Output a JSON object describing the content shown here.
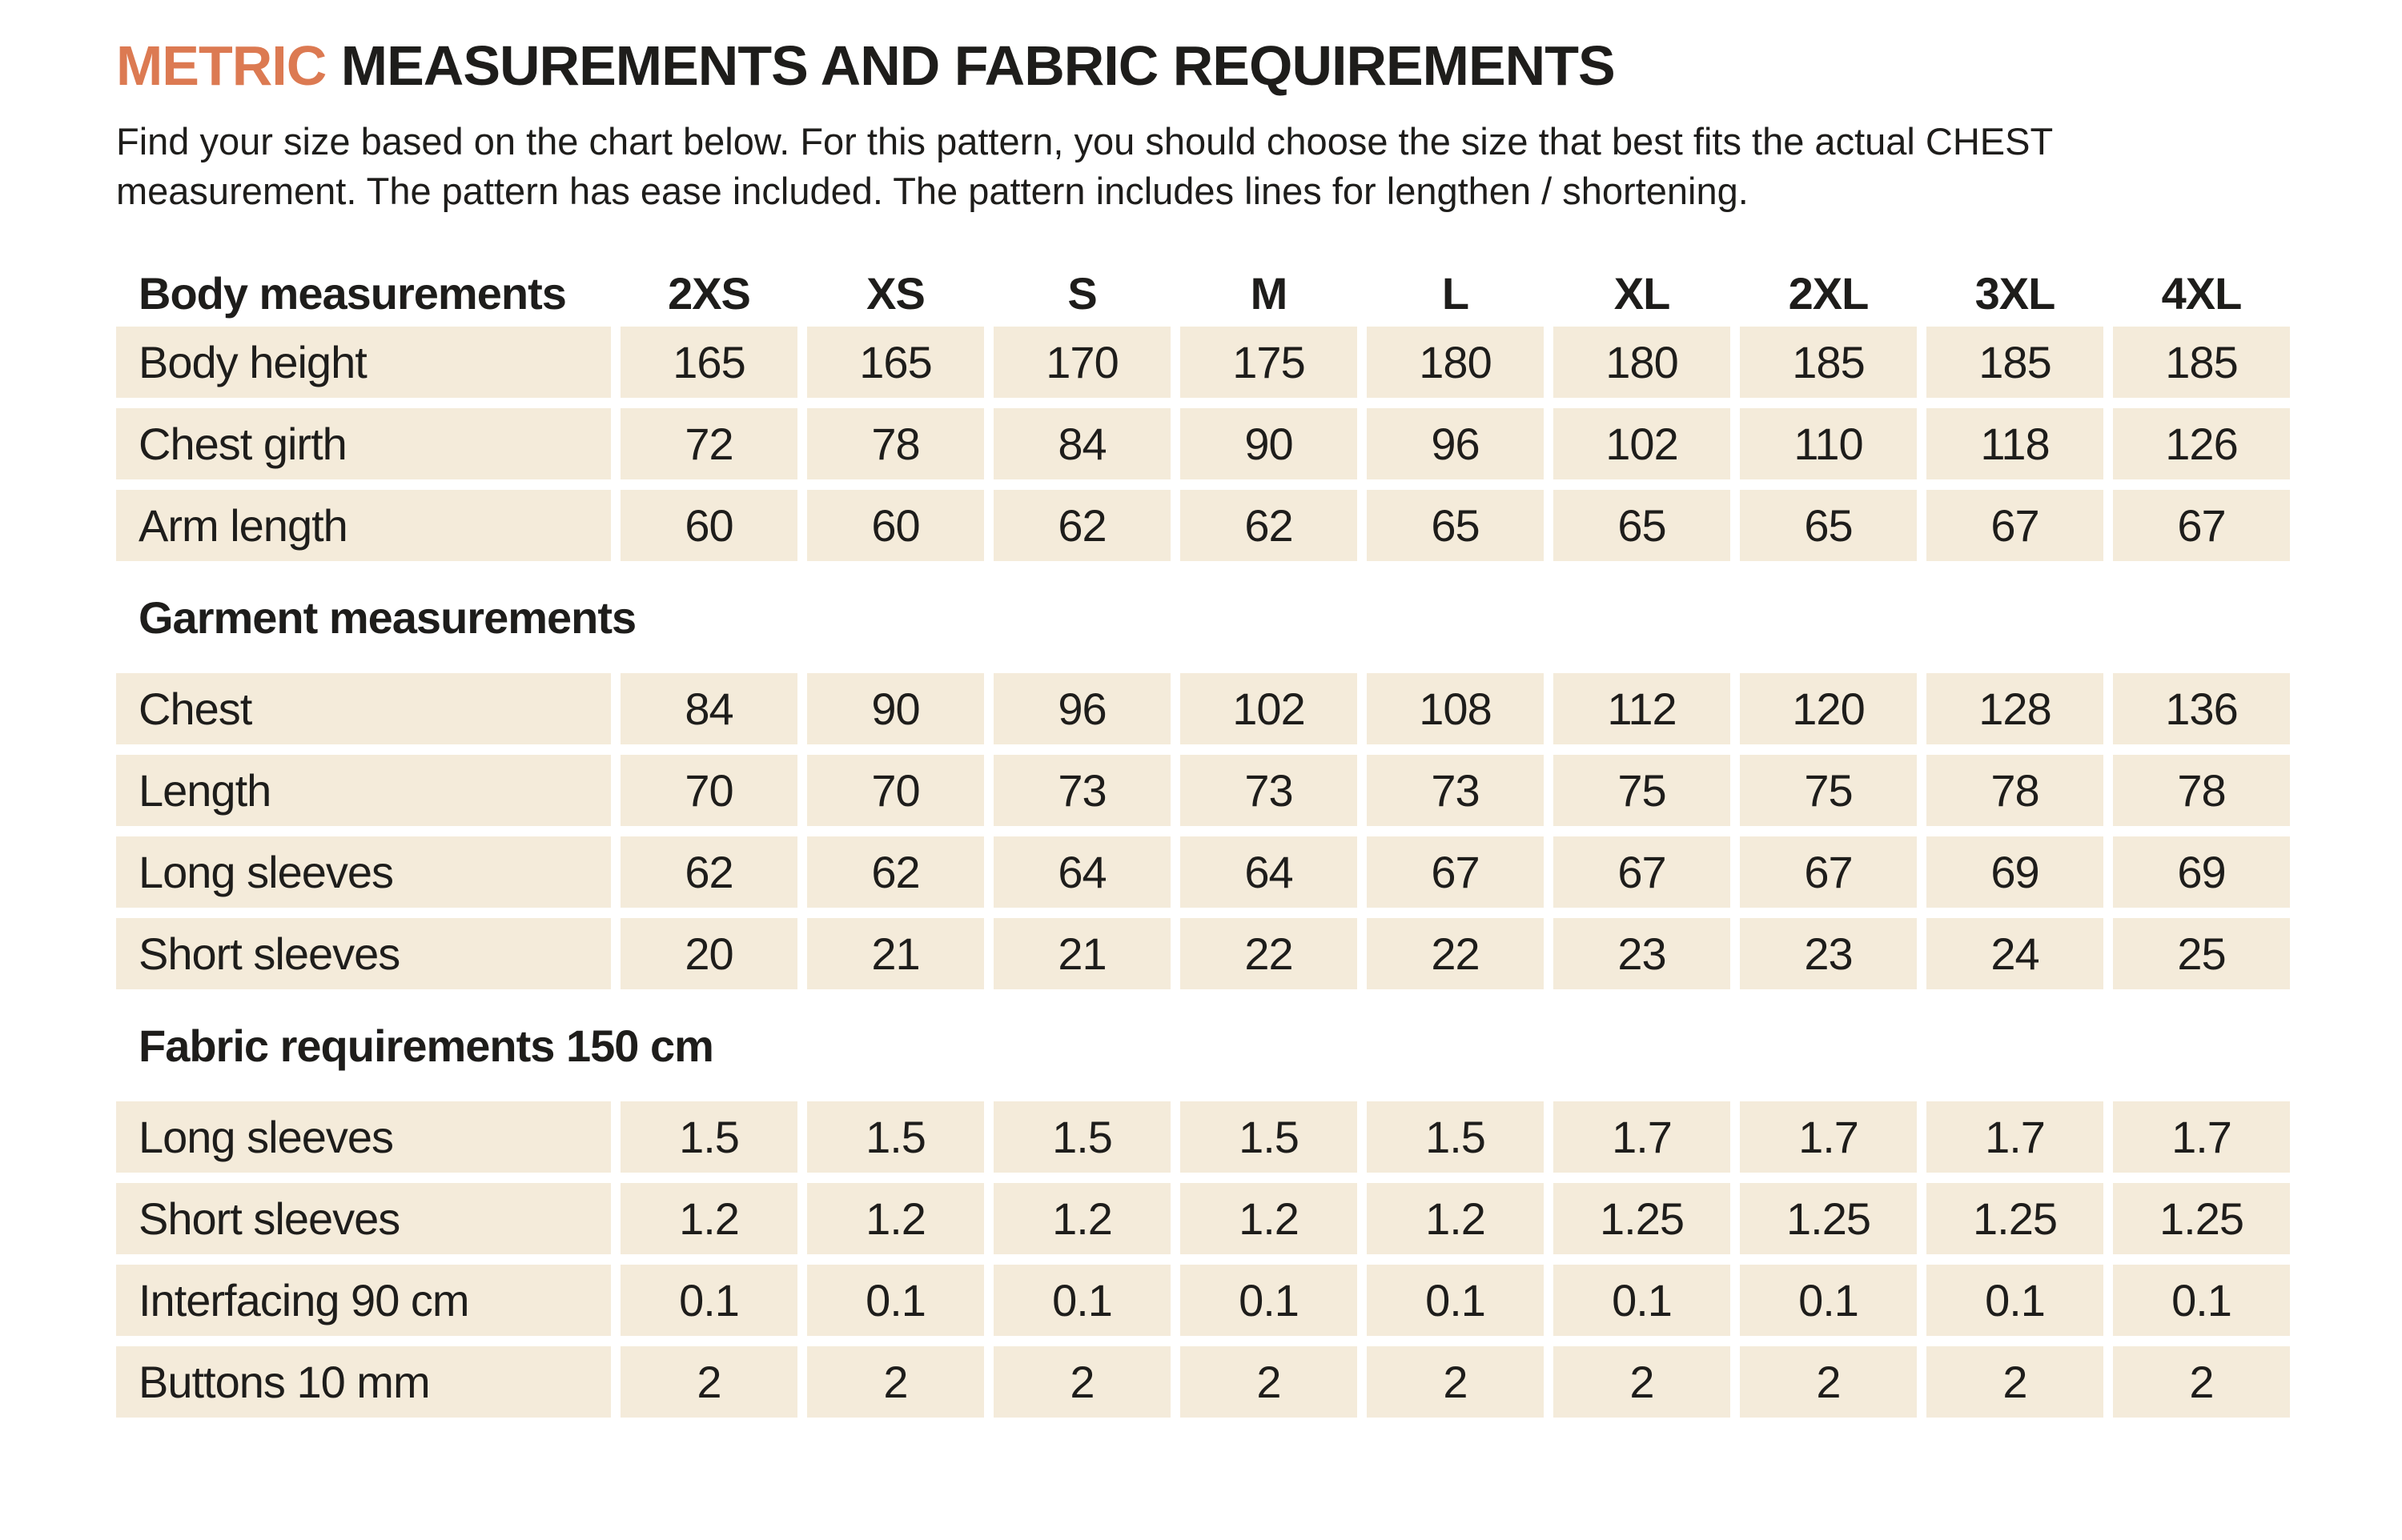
{
  "header": {
    "title_highlight": "METRIC",
    "title_rest": " MEASUREMENTS AND FABRIC REQUIREMENTS",
    "description": "Find your size based on the chart below. For this pattern, you should choose the size that best fits the actual CHEST measurement. The pattern has ease included. The pattern includes lines for lengthen / shortening."
  },
  "colors": {
    "accent_orange": "#dc7a52",
    "cell_beige": "#f4ebda",
    "text_dark": "#1e1d1b",
    "background": "#ffffff"
  },
  "table": {
    "header": {
      "label": "Body measurements",
      "sizes": [
        "2XS",
        "XS",
        "S",
        "M",
        "L",
        "XL",
        "2XL",
        "3XL",
        "4XL"
      ]
    },
    "sections": [
      {
        "heading": "",
        "rows": [
          {
            "label": "Body height",
            "values": [
              "165",
              "165",
              "170",
              "175",
              "180",
              "180",
              "185",
              "185",
              "185"
            ]
          },
          {
            "label": "Chest girth",
            "values": [
              "72",
              "78",
              "84",
              "90",
              "96",
              "102",
              "110",
              "118",
              "126"
            ]
          },
          {
            "label": "Arm length",
            "values": [
              "60",
              "60",
              "62",
              "62",
              "65",
              "65",
              "65",
              "67",
              "67"
            ]
          }
        ]
      },
      {
        "heading": "Garment measurements",
        "rows": [
          {
            "label": "Chest",
            "values": [
              "84",
              "90",
              "96",
              "102",
              "108",
              "112",
              "120",
              "128",
              "136"
            ]
          },
          {
            "label": "Length",
            "values": [
              "70",
              "70",
              "73",
              "73",
              "73",
              "75",
              "75",
              "78",
              "78"
            ]
          },
          {
            "label": "Long sleeves",
            "values": [
              "62",
              "62",
              "64",
              "64",
              "67",
              "67",
              "67",
              "69",
              "69"
            ]
          },
          {
            "label": "Short sleeves",
            "values": [
              "20",
              "21",
              "21",
              "22",
              "22",
              "23",
              "23",
              "24",
              "25"
            ]
          }
        ]
      },
      {
        "heading": "Fabric requirements 150 cm",
        "rows": [
          {
            "label": "Long sleeves",
            "values": [
              "1.5",
              "1.5",
              "1.5",
              "1.5",
              "1.5",
              "1.7",
              "1.7",
              "1.7",
              "1.7"
            ]
          },
          {
            "label": "Short sleeves",
            "values": [
              "1.2",
              "1.2",
              "1.2",
              "1.2",
              "1.2",
              "1.25",
              "1.25",
              "1.25",
              "1.25"
            ]
          },
          {
            "label": "Interfacing 90 cm",
            "values": [
              "0.1",
              "0.1",
              "0.1",
              "0.1",
              "0.1",
              "0.1",
              "0.1",
              "0.1",
              "0.1"
            ]
          },
          {
            "label": "Buttons 10 mm",
            "values": [
              "2",
              "2",
              "2",
              "2",
              "2",
              "2",
              "2",
              "2",
              "2"
            ]
          }
        ]
      }
    ]
  }
}
